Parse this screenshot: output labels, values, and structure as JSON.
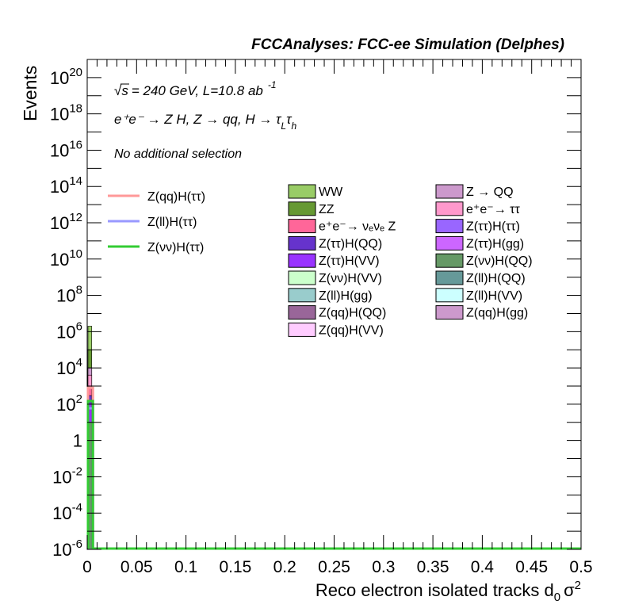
{
  "header": {
    "title": "FCCAnalyses: FCC-ee Simulation (Delphes)",
    "energy_text": "= 240 GeV, L=10.8 ab",
    "energy_prefix": "√s",
    "lumi_exponent": "-1",
    "process_text": "e⁺e⁻ → Z H, Z → qq, H → τ",
    "process_sub1": "L",
    "process_tau2": "τ",
    "process_sub2": "h",
    "selection": "No additional selection"
  },
  "axes": {
    "xlabel": "Reco electron isolated tracks d",
    "xlabel_sub": "0",
    "xlabel_sigma": "σ",
    "xlabel_sup": "2",
    "ylabel": "Events"
  },
  "chart_data": {
    "type": "bar",
    "xlim": [
      0,
      0.5
    ],
    "ylim": [
      1e-06,
      1e+21
    ],
    "ylog": true,
    "xticks": [
      "0",
      "0.05",
      "0.1",
      "0.15",
      "0.2",
      "0.25",
      "0.3",
      "0.35",
      "0.4",
      "0.45",
      "0.5"
    ],
    "yticks": [
      {
        "base": "10",
        "exp": "20",
        "value": 1e+20
      },
      {
        "base": "10",
        "exp": "18",
        "value": 1e+18
      },
      {
        "base": "10",
        "exp": "16",
        "value": 1e+16
      },
      {
        "base": "10",
        "exp": "14",
        "value": 100000000000000.0
      },
      {
        "base": "10",
        "exp": "12",
        "value": 1000000000000.0
      },
      {
        "base": "10",
        "exp": "10",
        "value": 10000000000.0
      },
      {
        "base": "10",
        "exp": "8",
        "value": 100000000.0
      },
      {
        "base": "10",
        "exp": "6",
        "value": 1000000.0
      },
      {
        "base": "10",
        "exp": "4",
        "value": 10000.0
      },
      {
        "base": "10",
        "exp": "2",
        "value": 100.0
      },
      {
        "base": "1",
        "exp": "",
        "value": 1
      },
      {
        "base": "10",
        "exp": "-2",
        "value": 0.01
      },
      {
        "base": "10",
        "exp": "-4",
        "value": 0.0001
      },
      {
        "base": "10",
        "exp": "-6",
        "value": 1e-06
      }
    ],
    "stack_first_bin": {
      "bin": [
        0,
        0.005
      ],
      "segments": [
        {
          "name": "WW",
          "color": "#99cc66",
          "top": 2000000
        },
        {
          "name": "ZZ",
          "color": "#669933",
          "top": 100000
        },
        {
          "name": "Z(qq)H(gg)",
          "color": "#cc99cc",
          "top": 10000
        },
        {
          "name": "e⁺e⁻→ ττ",
          "color": "#ff99cc",
          "top": 4000
        },
        {
          "name": "e⁺e⁻→ νₑνₑ Z",
          "color": "#ff6699",
          "top": 1000
        },
        {
          "name": "Z(ττ)H(QQ)",
          "color": "#6633cc",
          "top": 300
        },
        {
          "name": "Z(ττ)H(VV)",
          "color": "#9933ff",
          "top": 100
        },
        {
          "name": "Z(νν)H(QQ)",
          "color": "#669966",
          "top": 10
        }
      ]
    },
    "signal_lines": [
      {
        "name": "Z(qq)H(ττ)",
        "color": "#ff9999",
        "bin_values": [
          800,
          1e-06
        ]
      },
      {
        "name": "Z(ll)H(ττ)",
        "color": "#9999ff",
        "bin_values": [
          60,
          1e-06
        ]
      },
      {
        "name": "Z(νν)H(ττ)",
        "color": "#33cc33",
        "bin_values": [
          150,
          1e-06
        ]
      }
    ]
  },
  "legend_signals": [
    {
      "label": "Z(qq)H(ττ)",
      "color": "#ff9999"
    },
    {
      "label": "Z(ll)H(ττ)",
      "color": "#9999ff"
    },
    {
      "label": "Z(νν)H(ττ)",
      "color": "#33cc33"
    }
  ],
  "legend_bkg_col1": [
    {
      "label": "WW",
      "color": "#99cc66"
    },
    {
      "label": "ZZ",
      "color": "#669933"
    },
    {
      "label": "e⁺e⁻→ νₑνₑ Z",
      "color": "#ff6699"
    },
    {
      "label": "Z(ττ)H(QQ)",
      "color": "#6633cc"
    },
    {
      "label": "Z(ττ)H(VV)",
      "color": "#9933ff"
    },
    {
      "label": "Z(νν)H(VV)",
      "color": "#ccffcc"
    },
    {
      "label": "Z(ll)H(gg)",
      "color": "#99cccc"
    },
    {
      "label": "Z(qq)H(QQ)",
      "color": "#996699"
    },
    {
      "label": "Z(qq)H(VV)",
      "color": "#ffccff"
    }
  ],
  "legend_bkg_col2": [
    {
      "label": "Z → QQ",
      "color": "#cc99cc"
    },
    {
      "label": "e⁺e⁻→ ττ",
      "color": "#ff99cc"
    },
    {
      "label": "Z(ττ)H(ττ)",
      "color": "#9966ff"
    },
    {
      "label": "Z(ττ)H(gg)",
      "color": "#cc66ff"
    },
    {
      "label": "Z(νν)H(QQ)",
      "color": "#669966"
    },
    {
      "label": "Z(ll)H(QQ)",
      "color": "#669999"
    },
    {
      "label": "Z(ll)H(VV)",
      "color": "#ccffff"
    },
    {
      "label": "Z(qq)H(gg)",
      "color": "#cc99cc"
    }
  ]
}
